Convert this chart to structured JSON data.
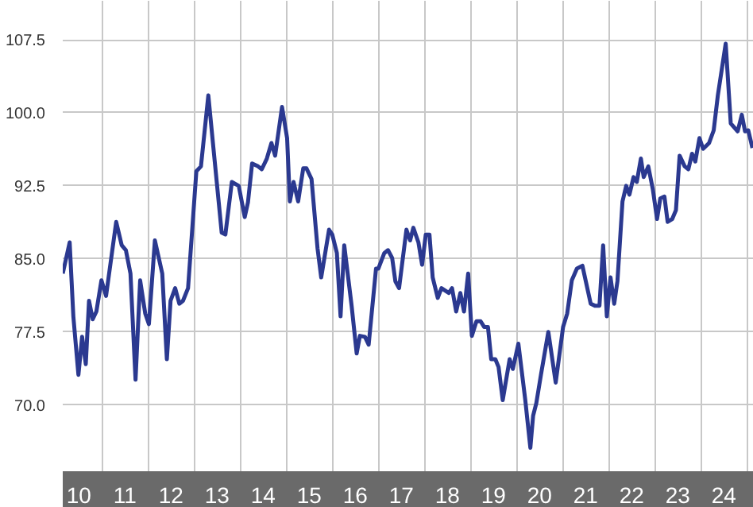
{
  "chart_data": {
    "type": "line",
    "x": [
      10.15,
      10.3,
      10.38,
      10.49,
      10.57,
      10.65,
      10.72,
      10.8,
      10.88,
      10.99,
      11.09,
      11.31,
      11.43,
      11.52,
      11.62,
      11.73,
      11.83,
      11.94,
      12.02,
      12.15,
      12.31,
      12.41,
      12.49,
      12.59,
      12.68,
      12.76,
      12.87,
      13.05,
      13.15,
      13.31,
      13.41,
      13.6,
      13.68,
      13.82,
      13.97,
      14.1,
      14.17,
      14.26,
      14.39,
      14.47,
      14.58,
      14.68,
      14.76,
      14.91,
      15.02,
      15.08,
      15.16,
      15.26,
      15.37,
      15.44,
      15.55,
      15.68,
      15.76,
      15.93,
      16.0,
      16.1,
      16.18,
      16.26,
      16.42,
      16.53,
      16.6,
      16.71,
      16.79,
      16.95,
      17.0,
      17.13,
      17.21,
      17.3,
      17.37,
      17.45,
      17.61,
      17.69,
      17.76,
      17.87,
      17.95,
      18.03,
      18.11,
      18.18,
      18.29,
      18.37,
      18.53,
      18.6,
      18.69,
      18.78,
      18.86,
      18.95,
      19.03,
      19.13,
      19.22,
      19.3,
      19.38,
      19.45,
      19.54,
      19.61,
      19.7,
      19.85,
      19.92,
      20.04,
      20.19,
      20.3,
      20.36,
      20.43,
      20.53,
      20.69,
      20.85,
      21.01,
      21.1,
      21.2,
      21.31,
      21.43,
      21.61,
      21.7,
      21.8,
      21.88,
      21.96,
      22.04,
      22.12,
      22.19,
      22.3,
      22.38,
      22.45,
      22.54,
      22.61,
      22.7,
      22.76,
      22.86,
      22.96,
      23.05,
      23.12,
      23.21,
      23.28,
      23.38,
      23.46,
      23.54,
      23.65,
      23.73,
      23.81,
      23.88,
      23.97,
      24.05,
      24.18,
      24.28,
      24.37,
      24.54,
      24.65,
      24.8,
      24.89,
      24.96,
      25.03,
      25.12
    ],
    "series": [
      {
        "color": "#2b3990",
        "values": [
          83.5,
          86.7,
          79.1,
          73.1,
          77.0,
          74.2,
          80.7,
          78.8,
          79.6,
          82.8,
          81.2,
          88.8,
          86.4,
          85.9,
          83.5,
          72.6,
          82.8,
          79.4,
          78.3,
          86.9,
          83.5,
          74.7,
          80.7,
          82.0,
          80.4,
          80.7,
          82.0,
          94.0,
          94.5,
          101.8,
          96.9,
          87.7,
          87.5,
          92.9,
          92.5,
          89.3,
          90.8,
          94.8,
          94.5,
          94.2,
          95.3,
          96.9,
          95.6,
          100.6,
          97.4,
          90.9,
          92.9,
          90.9,
          94.3,
          94.3,
          93.2,
          86.1,
          83.1,
          88.0,
          87.5,
          85.6,
          79.1,
          86.4,
          80.2,
          75.3,
          77.1,
          77.0,
          76.2,
          84.0,
          84.0,
          85.6,
          85.9,
          85.1,
          82.7,
          82.0,
          88.0,
          86.9,
          88.2,
          86.7,
          84.4,
          87.5,
          87.5,
          83.1,
          81.0,
          82.0,
          81.5,
          82.0,
          79.6,
          81.5,
          79.6,
          83.5,
          77.1,
          78.6,
          78.6,
          78.0,
          78.0,
          74.7,
          74.7,
          73.9,
          70.5,
          74.7,
          73.7,
          76.3,
          70.5,
          65.6,
          68.9,
          70.2,
          73.1,
          77.5,
          72.3,
          78.0,
          79.4,
          82.8,
          84.0,
          84.3,
          80.4,
          80.2,
          80.2,
          86.4,
          79.1,
          83.1,
          80.4,
          82.7,
          90.9,
          92.5,
          91.6,
          93.4,
          92.9,
          95.3,
          93.4,
          94.5,
          92.1,
          89.1,
          91.2,
          91.4,
          88.8,
          89.1,
          90.0,
          95.6,
          94.5,
          94.2,
          95.8,
          95.0,
          97.4,
          96.3,
          96.9,
          98.2,
          101.8,
          107.1,
          98.9,
          98.1,
          99.8,
          98.1,
          98.2,
          96.4
        ]
      }
    ],
    "xlim": [
      10.15,
      25.15
    ],
    "ylim": [
      63.2,
      111.5
    ],
    "xticks": [
      {
        "value": 10.5,
        "label": "10"
      },
      {
        "value": 11.5,
        "label": "11"
      },
      {
        "value": 12.5,
        "label": "12"
      },
      {
        "value": 13.5,
        "label": "13"
      },
      {
        "value": 14.5,
        "label": "14"
      },
      {
        "value": 15.5,
        "label": "15"
      },
      {
        "value": 16.5,
        "label": "16"
      },
      {
        "value": 17.5,
        "label": "17"
      },
      {
        "value": 18.5,
        "label": "18"
      },
      {
        "value": 19.5,
        "label": "19"
      },
      {
        "value": 20.5,
        "label": "20"
      },
      {
        "value": 21.5,
        "label": "21"
      },
      {
        "value": 22.5,
        "label": "22"
      },
      {
        "value": 23.5,
        "label": "23"
      },
      {
        "value": 24.5,
        "label": "24"
      },
      {
        "value": 11,
        "label": null
      },
      {
        "value": 12,
        "label": null
      },
      {
        "value": 13,
        "label": null
      },
      {
        "value": 14,
        "label": null
      },
      {
        "value": 15,
        "label": null
      },
      {
        "value": 16,
        "label": null
      },
      {
        "value": 17,
        "label": null
      },
      {
        "value": 18,
        "label": null
      },
      {
        "value": 19,
        "label": null
      },
      {
        "value": 20,
        "label": null
      },
      {
        "value": 21,
        "label": null
      },
      {
        "value": 22,
        "label": null
      },
      {
        "value": 23,
        "label": null
      },
      {
        "value": 24,
        "label": null
      },
      {
        "value": 25,
        "label": null
      }
    ],
    "yticks": [
      {
        "value": 70,
        "label": "70.0"
      },
      {
        "value": 77.5,
        "label": "77.5"
      },
      {
        "value": 85,
        "label": "85.0"
      },
      {
        "value": 92.5,
        "label": "92.5"
      },
      {
        "value": 100,
        "label": "100.0"
      },
      {
        "value": 107.5,
        "label": "107.5"
      }
    ],
    "grid": true,
    "marker": "none",
    "line_style": "solid"
  }
}
